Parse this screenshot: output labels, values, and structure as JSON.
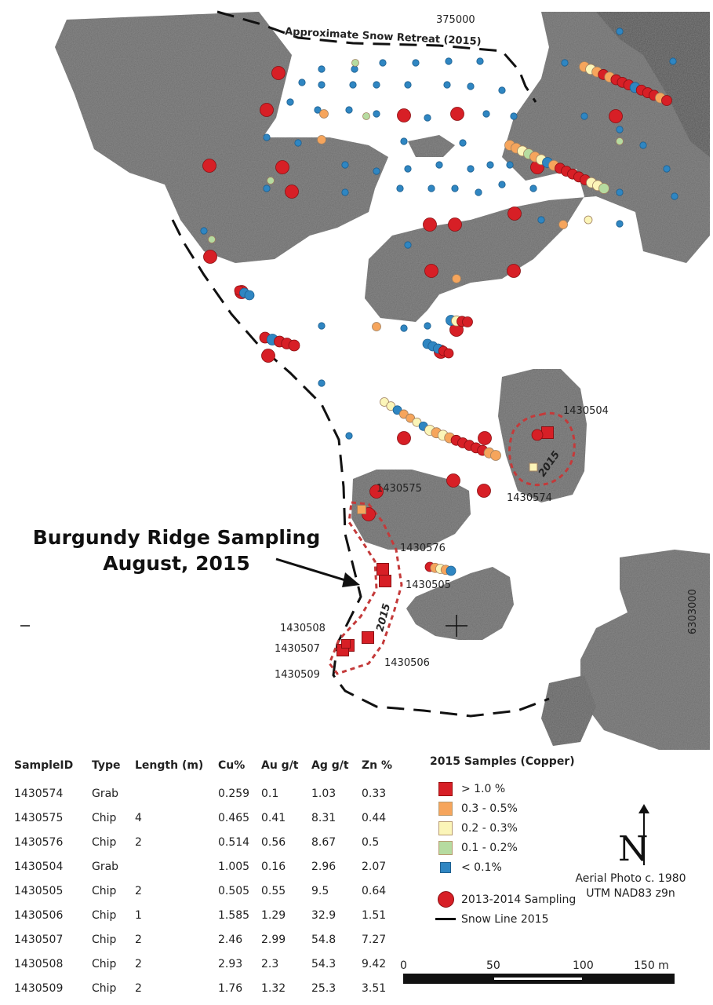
{
  "map": {
    "snow_retreat_label": "Approximate Snow Retreat (2015)",
    "grid_easting": "375000",
    "grid_northing": "6303000",
    "zone_label_2015": "2015",
    "sample_labels": [
      "1430504",
      "1430574",
      "1430575",
      "1430576",
      "1430505",
      "1430508",
      "1430507",
      "1430509",
      "1430506"
    ]
  },
  "callout": {
    "line1": "Burgundy Ridge Sampling",
    "line2": "August, 2015"
  },
  "table": {
    "headers": [
      "SampleID",
      "Type",
      "Length (m)",
      "Cu%",
      "Au g/t",
      "Ag g/t",
      "Zn %"
    ],
    "rows": [
      [
        "1430574",
        "Grab",
        "",
        "0.259",
        "0.1",
        "1.03",
        "0.33"
      ],
      [
        "1430575",
        "Chip",
        "4",
        "0.465",
        "0.41",
        "8.31",
        "0.44"
      ],
      [
        "1430576",
        "Chip",
        "2",
        "0.514",
        "0.56",
        "8.67",
        "0.5"
      ],
      [
        "1430504",
        "Grab",
        "",
        "1.005",
        "0.16",
        "2.96",
        "2.07"
      ],
      [
        "1430505",
        "Chip",
        "2",
        "0.505",
        "0.55",
        "9.5",
        "0.64"
      ],
      [
        "1430506",
        "Chip",
        "1",
        "1.585",
        "1.29",
        "32.9",
        "1.51"
      ],
      [
        "1430507",
        "Chip",
        "2",
        "2.46",
        "2.99",
        "54.8",
        "7.27"
      ],
      [
        "1430508",
        "Chip",
        "2",
        "2.93",
        "2.3",
        "54.3",
        "9.42"
      ],
      [
        "1430509",
        "Chip",
        "2",
        "1.76",
        "1.32",
        "25.3",
        "3.51"
      ]
    ]
  },
  "legend": {
    "title": "2015 Samples (Copper)",
    "classes": [
      {
        "label": "> 1.0 %",
        "color": "#d71f26"
      },
      {
        "label": "0.3 - 0.5%",
        "color": "#f6a55c"
      },
      {
        "label": "0.2 - 0.3%",
        "color": "#fbf5b8"
      },
      {
        "label": "0.1 - 0.2%",
        "color": "#b6dba0"
      },
      {
        "label": "< 0.1%",
        "color": "#2f86c2"
      }
    ],
    "prior_sampling": "2013-2014 Sampling",
    "snow_line": "Snow Line 2015"
  },
  "photo_info": {
    "line1": "Aerial Photo c. 1980",
    "line2": "UTM NAD83 z9n"
  },
  "north_label": "N",
  "scale_bar": {
    "ticks": [
      "0",
      "50",
      "100",
      "150 m"
    ]
  }
}
